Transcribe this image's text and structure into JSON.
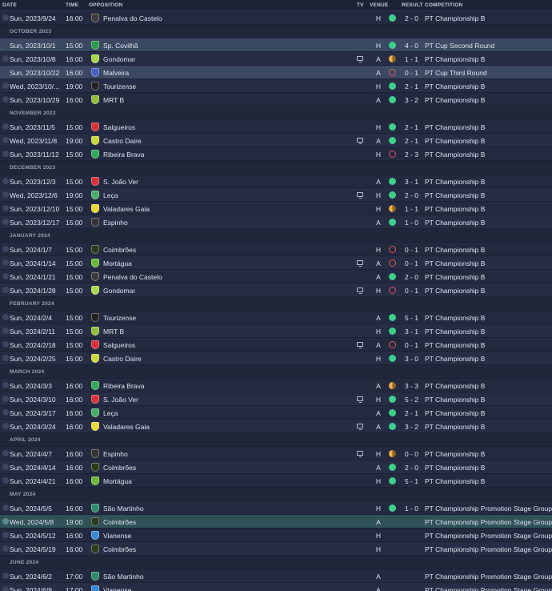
{
  "header": {
    "date": "DATE",
    "time": "TIME",
    "opposition": "OPPOSITION",
    "tv": "TV",
    "venue": "VENUE",
    "result": "RESULT",
    "competition": "COMPETITION"
  },
  "colors": {
    "win": "#3ecf8e",
    "loss": "#e0525a",
    "draw": "#f0b14a",
    "highlight": "#3b4963",
    "next_match": "#2f5158"
  },
  "rows": [
    {
      "type": "match",
      "date": "Sun, 2023/9/24",
      "time": "16:00",
      "opp": "Penalva do Castelo",
      "crest": "#3a3a3a",
      "tv": false,
      "venue": "H",
      "result": "W",
      "score": "2 - 0",
      "comp": "PT Championship B"
    },
    {
      "type": "month",
      "label": "OCTOBER 2023"
    },
    {
      "type": "match",
      "date": "Sun, 2023/10/1",
      "time": "15:00",
      "opp": "Sp. Covilhã",
      "crest": "#2e9a4a",
      "tv": false,
      "venue": "H",
      "result": "W",
      "score": "4 - 0",
      "comp": "PT Cup Second Round",
      "style": "hl"
    },
    {
      "type": "match",
      "date": "Sun, 2023/10/8",
      "time": "16:00",
      "opp": "Gondomar",
      "crest": "#a8d84a",
      "tv": true,
      "venue": "A",
      "result": "D",
      "score": "1 - 1",
      "comp": "PT Championship B"
    },
    {
      "type": "match",
      "date": "Sun, 2023/10/22",
      "time": "16:00",
      "opp": "Malveira",
      "crest": "#4a5fc8",
      "tv": false,
      "venue": "A",
      "result": "L",
      "score": "0 - 1",
      "comp": "PT Cup Third Round",
      "style": "hl"
    },
    {
      "type": "match",
      "date": "Wed, 2023/10/...",
      "time": "19:00",
      "opp": "Tourizense",
      "crest": "#222222",
      "tv": false,
      "venue": "H",
      "result": "W",
      "score": "2 - 1",
      "comp": "PT Championship B"
    },
    {
      "type": "match",
      "date": "Sun, 2023/10/29",
      "time": "16:00",
      "opp": "MRT B",
      "crest": "#8fbf3a",
      "tv": false,
      "venue": "A",
      "result": "W",
      "score": "3 - 2",
      "comp": "PT Championship B"
    },
    {
      "type": "month",
      "label": "NOVEMBER 2023"
    },
    {
      "type": "match",
      "date": "Sun, 2023/11/5",
      "time": "15:00",
      "opp": "Salgueiros",
      "crest": "#d8313a",
      "tv": false,
      "venue": "H",
      "result": "W",
      "score": "2 - 1",
      "comp": "PT Championship B"
    },
    {
      "type": "match",
      "date": "Wed, 2023/11/8",
      "time": "19:00",
      "opp": "Castro Daire",
      "crest": "#c8d83a",
      "tv": true,
      "venue": "A",
      "result": "W",
      "score": "2 - 1",
      "comp": "PT Championship B"
    },
    {
      "type": "match",
      "date": "Sun, 2023/11/12",
      "time": "15:00",
      "opp": "Ribeira Brava",
      "crest": "#2fa85a",
      "tv": false,
      "venue": "H",
      "result": "L",
      "score": "2 - 3",
      "comp": "PT Championship B"
    },
    {
      "type": "month",
      "label": "DECEMBER 2023"
    },
    {
      "type": "match",
      "date": "Sun, 2023/12/3",
      "time": "15:00",
      "opp": "S. João Ver",
      "crest": "#d8313a",
      "tv": false,
      "venue": "A",
      "result": "W",
      "score": "3 - 1",
      "comp": "PT Championship B"
    },
    {
      "type": "match",
      "date": "Wed, 2023/12/6",
      "time": "19:00",
      "opp": "Leça",
      "crest": "#4aaa6a",
      "tv": true,
      "venue": "H",
      "result": "W",
      "score": "2 - 0",
      "comp": "PT Championship B"
    },
    {
      "type": "match",
      "date": "Sun, 2023/12/10",
      "time": "15:00",
      "opp": "Valadares Gaia",
      "crest": "#e8d83a",
      "tv": false,
      "venue": "H",
      "result": "D",
      "score": "1 - 1",
      "comp": "PT Championship B"
    },
    {
      "type": "match",
      "date": "Sun, 2023/12/17",
      "time": "15:00",
      "opp": "Espinho",
      "crest": "#333333",
      "tv": false,
      "venue": "A",
      "result": "W",
      "score": "1 - 0",
      "comp": "PT Championship B"
    },
    {
      "type": "month",
      "label": "JANUARY 2024"
    },
    {
      "type": "match",
      "date": "Sun, 2024/1/7",
      "time": "15:00",
      "opp": "Coimbrões",
      "crest": "#2a3a1a",
      "tv": false,
      "venue": "H",
      "result": "L",
      "score": "0 - 1",
      "comp": "PT Championship B"
    },
    {
      "type": "match",
      "date": "Sun, 2024/1/14",
      "time": "15:00",
      "opp": "Mortágua",
      "crest": "#6ab83a",
      "tv": true,
      "venue": "A",
      "result": "L",
      "score": "0 - 1",
      "comp": "PT Championship B"
    },
    {
      "type": "match",
      "date": "Sun, 2024/1/21",
      "time": "15:00",
      "opp": "Penalva do Castelo",
      "crest": "#3a3a3a",
      "tv": false,
      "venue": "A",
      "result": "W",
      "score": "2 - 0",
      "comp": "PT Championship B"
    },
    {
      "type": "match",
      "date": "Sun, 2024/1/28",
      "time": "15:00",
      "opp": "Gondomar",
      "crest": "#a8d84a",
      "tv": true,
      "venue": "H",
      "result": "L",
      "score": "0 - 1",
      "comp": "PT Championship B"
    },
    {
      "type": "month",
      "label": "FEBRUARY 2024"
    },
    {
      "type": "match",
      "date": "Sun, 2024/2/4",
      "time": "15:00",
      "opp": "Tourizense",
      "crest": "#222222",
      "tv": false,
      "venue": "A",
      "result": "W",
      "score": "5 - 1",
      "comp": "PT Championship B"
    },
    {
      "type": "match",
      "date": "Sun, 2024/2/11",
      "time": "15:00",
      "opp": "MRT B",
      "crest": "#8fbf3a",
      "tv": false,
      "venue": "H",
      "result": "W",
      "score": "3 - 1",
      "comp": "PT Championship B"
    },
    {
      "type": "match",
      "date": "Sun, 2024/2/18",
      "time": "15:00",
      "opp": "Salgueiros",
      "crest": "#d8313a",
      "tv": true,
      "venue": "A",
      "result": "L",
      "score": "0 - 1",
      "comp": "PT Championship B"
    },
    {
      "type": "match",
      "date": "Sun, 2024/2/25",
      "time": "15:00",
      "opp": "Castro Daire",
      "crest": "#c8d83a",
      "tv": false,
      "venue": "H",
      "result": "W",
      "score": "3 - 0",
      "comp": "PT Championship B"
    },
    {
      "type": "month",
      "label": "MARCH 2024"
    },
    {
      "type": "match",
      "date": "Sun, 2024/3/3",
      "time": "16:00",
      "opp": "Ribeira Brava",
      "crest": "#2fa85a",
      "tv": false,
      "venue": "A",
      "result": "D",
      "score": "3 - 3",
      "comp": "PT Championship B"
    },
    {
      "type": "match",
      "date": "Sun, 2024/3/10",
      "time": "16:00",
      "opp": "S. João Ver",
      "crest": "#d8313a",
      "tv": true,
      "venue": "H",
      "result": "W",
      "score": "5 - 2",
      "comp": "PT Championship B"
    },
    {
      "type": "match",
      "date": "Sun, 2024/3/17",
      "time": "16:00",
      "opp": "Leça",
      "crest": "#4aaa6a",
      "tv": false,
      "venue": "A",
      "result": "W",
      "score": "2 - 1",
      "comp": "PT Championship B"
    },
    {
      "type": "match",
      "date": "Sun, 2024/3/24",
      "time": "16:00",
      "opp": "Valadares Gaia",
      "crest": "#e8d83a",
      "tv": true,
      "venue": "A",
      "result": "W",
      "score": "3 - 2",
      "comp": "PT Championship B"
    },
    {
      "type": "month",
      "label": "APRIL 2024"
    },
    {
      "type": "match",
      "date": "Sun, 2024/4/7",
      "time": "16:00",
      "opp": "Espinho",
      "crest": "#333333",
      "tv": true,
      "venue": "H",
      "result": "D",
      "score": "0 - 0",
      "comp": "PT Championship B"
    },
    {
      "type": "match",
      "date": "Sun, 2024/4/14",
      "time": "16:00",
      "opp": "Coimbrões",
      "crest": "#2a3a1a",
      "tv": false,
      "venue": "A",
      "result": "W",
      "score": "2 - 0",
      "comp": "PT Championship B"
    },
    {
      "type": "match",
      "date": "Sun, 2024/4/21",
      "time": "16:00",
      "opp": "Mortágua",
      "crest": "#6ab83a",
      "tv": false,
      "venue": "H",
      "result": "W",
      "score": "5 - 1",
      "comp": "PT Championship B"
    },
    {
      "type": "month",
      "label": "MAY 2024"
    },
    {
      "type": "match",
      "date": "Sun, 2024/5/5",
      "time": "16:00",
      "opp": "São Martinho",
      "crest": "#2e8a6a",
      "tv": false,
      "venue": "H",
      "result": "W",
      "score": "1 - 0",
      "comp": "PT Championship Promotion Stage Group B"
    },
    {
      "type": "match",
      "date": "Wed, 2024/5/8",
      "time": "19:00",
      "opp": "Coimbrões",
      "crest": "#2a3a1a",
      "tv": false,
      "venue": "A",
      "result": "",
      "score": "",
      "comp": "PT Championship Promotion Stage Group B",
      "style": "next"
    },
    {
      "type": "match",
      "date": "Sun, 2024/5/12",
      "time": "16:00",
      "opp": "Vianense",
      "crest": "#3a8ad8",
      "tv": false,
      "venue": "H",
      "result": "",
      "score": "",
      "comp": "PT Championship Promotion Stage Group B"
    },
    {
      "type": "match",
      "date": "Sun, 2024/5/19",
      "time": "16:00",
      "opp": "Coimbrões",
      "crest": "#2a3a1a",
      "tv": false,
      "venue": "H",
      "result": "",
      "score": "",
      "comp": "PT Championship Promotion Stage Group B"
    },
    {
      "type": "month",
      "label": "JUNE 2024"
    },
    {
      "type": "match",
      "date": "Sun, 2024/6/2",
      "time": "17:00",
      "opp": "São Martinho",
      "crest": "#2e8a6a",
      "tv": false,
      "venue": "A",
      "result": "",
      "score": "",
      "comp": "PT Championship Promotion Stage Group B"
    },
    {
      "type": "match",
      "date": "Sun, 2024/6/9",
      "time": "17:00",
      "opp": "Vianense",
      "crest": "#3a8ad8",
      "tv": false,
      "venue": "A",
      "result": "",
      "score": "",
      "comp": "PT Championship Promotion Stage Group B"
    }
  ]
}
